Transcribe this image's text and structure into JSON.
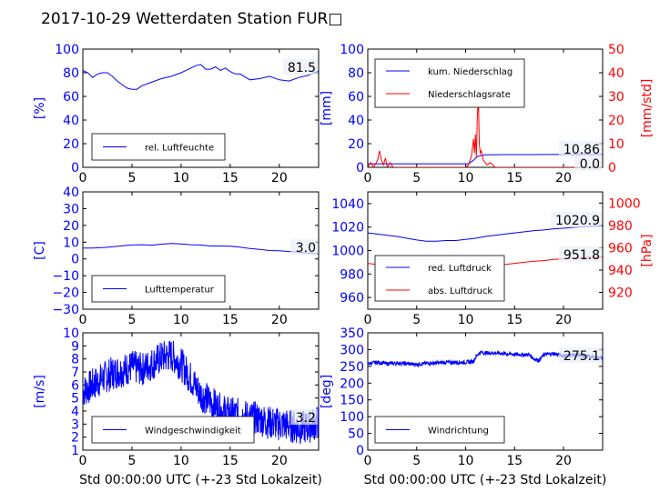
{
  "page": {
    "title": "2017-10-29 Wetterdaten Station FUR□"
  },
  "chart_data": [
    {
      "type": "line",
      "xlim": [
        0,
        24
      ],
      "xticks": [
        "0",
        "5",
        "10",
        "15",
        "20"
      ],
      "ylim": [
        0,
        100
      ],
      "yticks": [
        "0",
        "20",
        "40",
        "60",
        "80",
        "100"
      ],
      "ylabel": "[%]",
      "series": [
        {
          "name": "rel. Luftfeuchte",
          "color": "#0000ff",
          "x": [
            0,
            0.5,
            1,
            1.5,
            2,
            2.5,
            3,
            3.5,
            4,
            4.5,
            5,
            5.5,
            6,
            7,
            8,
            9,
            10,
            10.5,
            11,
            11.5,
            12,
            12.5,
            13,
            13.5,
            14,
            14.5,
            15,
            15.5,
            16,
            17,
            18,
            19,
            20,
            21,
            22,
            23,
            23.5,
            24
          ],
          "y": [
            82,
            80,
            76,
            79,
            80,
            80,
            77,
            73,
            70,
            67,
            66,
            66,
            69,
            72,
            75,
            77,
            80,
            82,
            84,
            86,
            87,
            83,
            83,
            85,
            82,
            84,
            81,
            79,
            79,
            74,
            75,
            77,
            74,
            73,
            76,
            78,
            80,
            81.5
          ]
        }
      ],
      "annotation": "81.5"
    },
    {
      "type": "line",
      "xlim": [
        0,
        24
      ],
      "xticks": [
        "0",
        "5",
        "10",
        "15",
        "20"
      ],
      "ylim": [
        0,
        100
      ],
      "yticks": [
        "0",
        "20",
        "40",
        "60",
        "80",
        "100"
      ],
      "ylabel": "[mm]",
      "ylim2": [
        0,
        50
      ],
      "yticks2": [
        "0",
        "10",
        "20",
        "30",
        "40",
        "50"
      ],
      "ylabel2": "[mm/std]",
      "series": [
        {
          "name": "kum. Niederschlag",
          "color": "#0000ff",
          "axis": "left",
          "x": [
            0,
            10.3,
            10.8,
            11.2,
            11.6,
            12,
            13,
            14,
            15,
            16,
            17,
            18,
            19,
            20,
            21,
            22,
            23,
            24
          ],
          "y": [
            3,
            3,
            6,
            9,
            10,
            10.5,
            10.7,
            10.8,
            10.8,
            10.8,
            10.8,
            10.86,
            10.86,
            10.86,
            10.86,
            10.86,
            10.86,
            10.86
          ]
        },
        {
          "name": "Niederschlagsrate",
          "color": "#ff0000",
          "axis": "right",
          "x": [
            0,
            0.3,
            0.6,
            1,
            1.2,
            1.4,
            1.6,
            1.8,
            2,
            2.3,
            2.6,
            3,
            5,
            8,
            10,
            10.3,
            10.6,
            10.8,
            10.9,
            11,
            11.1,
            11.2,
            11.3,
            11.4,
            11.5,
            11.6,
            11.8,
            12,
            12.2,
            12.5,
            12.8,
            13,
            14,
            24
          ],
          "y": [
            0,
            2,
            0,
            3,
            7,
            3,
            1,
            4,
            0,
            2,
            0,
            0,
            0,
            0,
            0,
            1,
            5,
            12,
            6,
            14,
            4,
            22,
            30,
            10,
            6,
            7,
            3,
            2,
            1,
            2,
            1,
            0,
            0,
            0
          ]
        }
      ],
      "annotation": "10.86",
      "annotation2": "0.0"
    },
    {
      "type": "line",
      "xlim": [
        0,
        24
      ],
      "xticks": [
        "0",
        "5",
        "10",
        "15",
        "20"
      ],
      "ylim": [
        -30,
        40
      ],
      "yticks": [
        "−30",
        "−20",
        "−10",
        "0",
        "10",
        "20",
        "30",
        "40"
      ],
      "ylabel": "[C]",
      "series": [
        {
          "name": "Lufttemperatur",
          "color": "#0000ff",
          "x": [
            0,
            1,
            2,
            3,
            4,
            5,
            6,
            7,
            8,
            9,
            10,
            11,
            12,
            13,
            14,
            15,
            16,
            17,
            18,
            19,
            20,
            21,
            22,
            23,
            24
          ],
          "y": [
            6.5,
            6.5,
            6.8,
            7.2,
            7.8,
            8.3,
            8.5,
            8.2,
            8.8,
            9.2,
            8.9,
            8.5,
            8.3,
            7.7,
            7.7,
            7.6,
            7.0,
            6.2,
            5.7,
            5.0,
            4.9,
            4.4,
            4.0,
            3.5,
            3.0
          ]
        }
      ],
      "annotation": "3.0"
    },
    {
      "type": "line",
      "xlim": [
        0,
        24
      ],
      "xticks": [
        "0",
        "5",
        "10",
        "15",
        "20"
      ],
      "ylim": [
        950,
        1050
      ],
      "yticks": [
        "960",
        "980",
        "1000",
        "1020",
        "1040"
      ],
      "ylim2": [
        905,
        1010
      ],
      "yticks2": [
        "920",
        "940",
        "960",
        "980",
        "1000"
      ],
      "ylabel2": "[hPa]",
      "series": [
        {
          "name": "red. Luftdruck",
          "color": "#0000ff",
          "axis": "left",
          "x": [
            0,
            1,
            2,
            3,
            4,
            5,
            6,
            7,
            8,
            9,
            10,
            11,
            12,
            13,
            14,
            15,
            16,
            17,
            18,
            19,
            20,
            21,
            22,
            23,
            24
          ],
          "y": [
            1015,
            1014,
            1013,
            1012,
            1010.5,
            1009,
            1008,
            1008,
            1008.5,
            1008.5,
            1009.5,
            1010.5,
            1012,
            1013,
            1014,
            1015,
            1016,
            1017,
            1017.5,
            1018.5,
            1019,
            1019.8,
            1020.3,
            1020.7,
            1020.9
          ]
        },
        {
          "name": "abs. Luftdruck",
          "color": "#ff0000",
          "axis": "right",
          "x": [
            0,
            1,
            2,
            3,
            4,
            5,
            6,
            7,
            8,
            9,
            10,
            11,
            12,
            13,
            14,
            15,
            16,
            17,
            18,
            19,
            20,
            21,
            22,
            23,
            24
          ],
          "y": [
            946,
            945,
            944,
            943,
            941.5,
            940,
            939,
            939,
            939.5,
            939.5,
            940.5,
            941.5,
            943,
            944,
            945,
            946,
            947,
            948,
            948.5,
            949.5,
            950,
            950.7,
            951.2,
            951.6,
            951.8
          ]
        }
      ],
      "annotation": "1020.9",
      "annotation2": "951.8"
    },
    {
      "type": "line",
      "xlim": [
        0,
        24
      ],
      "xticks": [
        "0",
        "5",
        "10",
        "15",
        "20"
      ],
      "ylim": [
        1,
        10
      ],
      "yticks": [
        "1",
        "2",
        "3",
        "4",
        "5",
        "6",
        "7",
        "8",
        "9",
        "10"
      ],
      "ylabel": "[m/s]",
      "xlabel": "Std 00:00:00 UTC (+-23 Std Lokalzeit)",
      "series": [
        {
          "name": "Windgeschwindigkeit",
          "color": "#0000ff",
          "x": [
            0,
            1,
            2,
            3,
            4,
            5,
            6,
            7,
            8,
            9,
            10,
            11,
            12,
            13,
            14,
            15,
            16,
            17,
            18,
            19,
            20,
            21,
            22,
            23,
            24
          ],
          "y": [
            5.5,
            6.0,
            6.5,
            6.9,
            7.1,
            7.4,
            7.2,
            7.6,
            8.1,
            8.3,
            7.6,
            6.5,
            5.3,
            4.7,
            4.1,
            3.8,
            3.7,
            3.5,
            3.4,
            3.1,
            3.0,
            2.9,
            2.7,
            2.8,
            3.2
          ]
        }
      ],
      "annotation": "3.2"
    },
    {
      "type": "line",
      "xlim": [
        0,
        24
      ],
      "xticks": [
        "0",
        "5",
        "10",
        "15",
        "20"
      ],
      "ylim": [
        0,
        350
      ],
      "yticks": [
        "0",
        "50",
        "100",
        "150",
        "200",
        "250",
        "300",
        "350"
      ],
      "ylabel": "[deg]",
      "xlabel": "Std 00:00:00 UTC (+-23 Std Lokalzeit)",
      "series": [
        {
          "name": "Windrichtung",
          "color": "#0000ff",
          "x": [
            0,
            1,
            2,
            3,
            4,
            5,
            6,
            7,
            8,
            9,
            10,
            10.8,
            11.2,
            11.6,
            12,
            13,
            14,
            15,
            16,
            16.5,
            17,
            17.5,
            18,
            19,
            20,
            21,
            22,
            23,
            24
          ],
          "y": [
            258,
            262,
            258,
            260,
            258,
            256,
            259,
            260,
            262,
            262,
            262,
            265,
            285,
            292,
            290,
            290,
            288,
            286,
            285,
            285,
            272,
            268,
            285,
            288,
            282,
            284,
            282,
            278,
            275
          ]
        }
      ],
      "annotation": "275.1"
    }
  ]
}
